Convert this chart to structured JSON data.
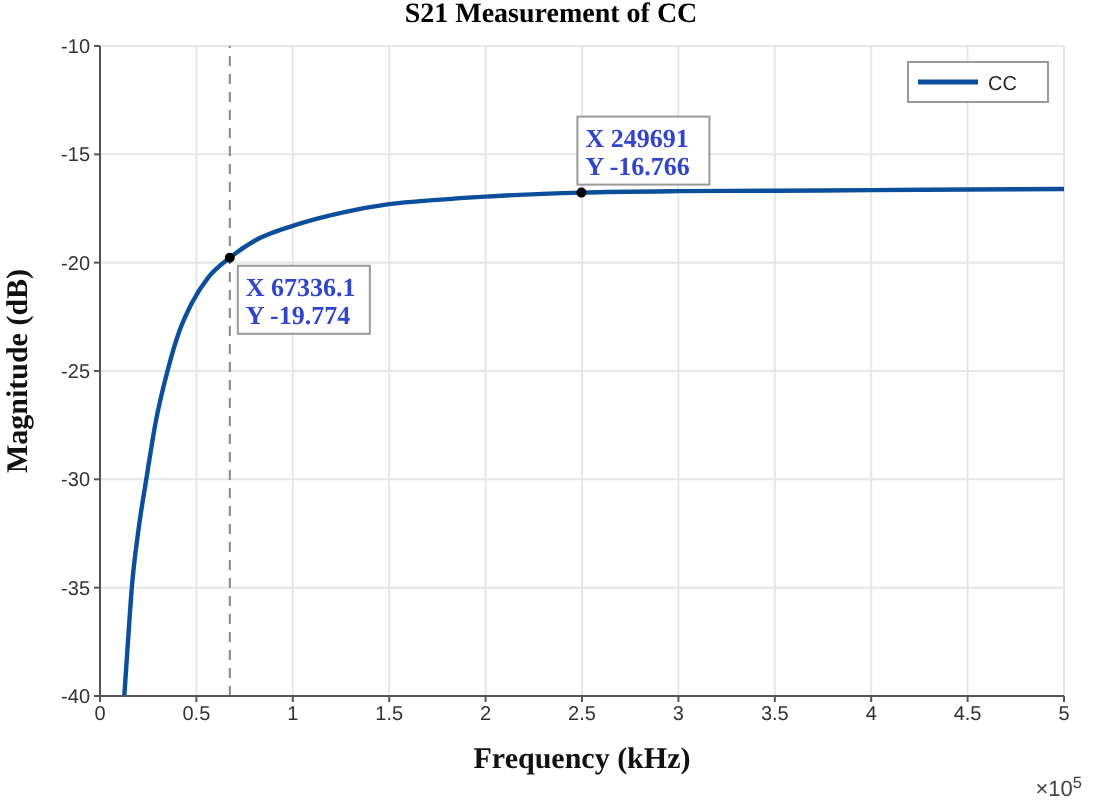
{
  "chart_data": {
    "type": "line",
    "title": "S21 Measurement of CC",
    "xlabel": "Frequency (kHz)",
    "ylabel": "Magnitude (dB)",
    "x": [
      0.126,
      0.145,
      0.165,
      0.2,
      0.24,
      0.29,
      0.35,
      0.41,
      0.48,
      0.56,
      0.673361,
      0.8,
      1,
      1.25,
      1.5,
      1.75,
      2,
      2.49691,
      3,
      3.5,
      4,
      4.5,
      5
    ],
    "series": [
      {
        "name": "CC",
        "color": "#0b4f9c",
        "values": [
          -40,
          -37.5,
          -35,
          -32.3,
          -30,
          -27.3,
          -25,
          -23.2,
          -21.8,
          -20.7,
          -19.774,
          -19.0,
          -18.3,
          -17.7,
          -17.3,
          -17.1,
          -16.95,
          -16.766,
          -16.7,
          -16.68,
          -16.65,
          -16.62,
          -16.6
        ]
      }
    ],
    "xlim": [
      0,
      5
    ],
    "ylim": [
      -40,
      -10
    ],
    "xticks": [
      0,
      0.5,
      1,
      1.5,
      2,
      2.5,
      3,
      3.5,
      4,
      4.5,
      5
    ],
    "yticks": [
      -40,
      -35,
      -30,
      -25,
      -20,
      -15,
      -10
    ],
    "ref_lines": [
      {
        "axis": "x",
        "value": 0.673361,
        "color": "#888888",
        "line_style": "dashed"
      }
    ],
    "annotations": [
      {
        "text": "X 67336.1\nY -19.774",
        "x": 0.673361,
        "y": -19.774
      },
      {
        "text": "X 249691\nY -16.766",
        "x": 2.49691,
        "y": -16.766
      },
      "×10$^{5}$"
    ],
    "grid": true,
    "legend": "top right",
    "marker": "none",
    "line_style": "solid"
  }
}
